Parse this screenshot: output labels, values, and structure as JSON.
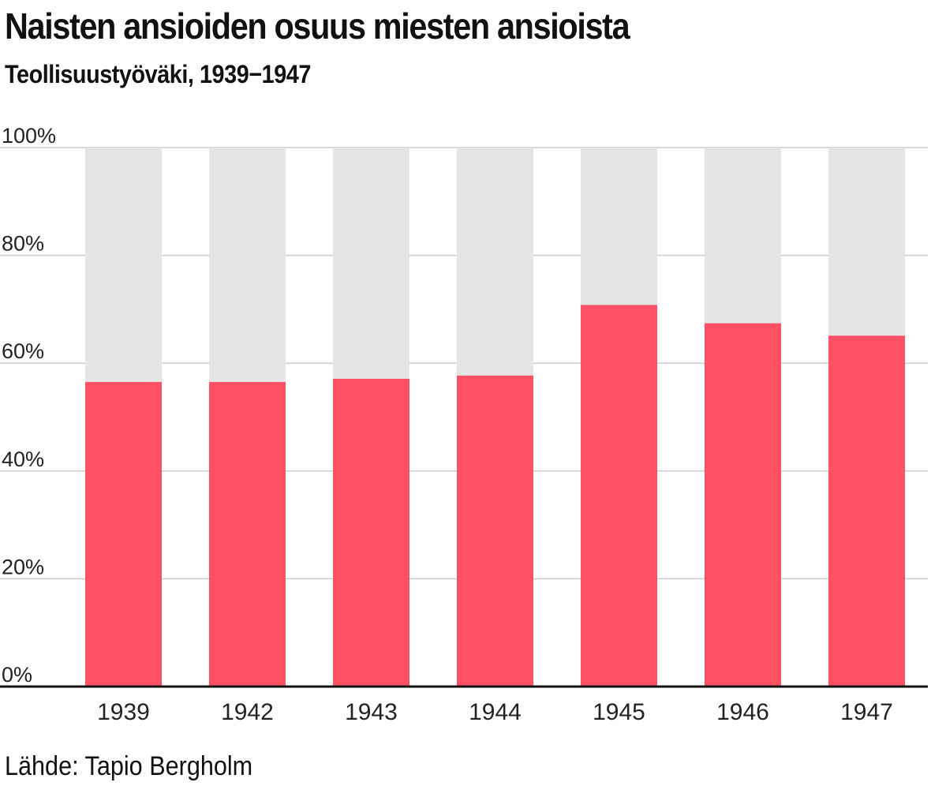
{
  "title": "Naisten ansioiden osuus miesten ansioista",
  "subtitle": "Teollisuustyöväki, 1939−1947",
  "source": "Lähde: Tapio Bergholm",
  "colors": {
    "bar": "#ff5064",
    "remainder": "#e5e5e5",
    "grid": "#cccccc",
    "axis": "#111111",
    "text": "#222222"
  },
  "chart_data": {
    "type": "bar",
    "stacked_to_100": true,
    "categories": [
      "1939",
      "1942",
      "1943",
      "1944",
      "1945",
      "1946",
      "1947"
    ],
    "values": [
      56.5,
      56.5,
      57.1,
      57.7,
      70.8,
      67.4,
      65.1
    ],
    "ylim": [
      0,
      100
    ],
    "yticks": [
      0,
      20,
      40,
      60,
      80,
      100
    ],
    "ytick_labels": [
      "0%",
      "20%",
      "40%",
      "60%",
      "80%",
      "100%"
    ],
    "xlabel": "",
    "ylabel": "",
    "grid": true,
    "legend": "none"
  }
}
